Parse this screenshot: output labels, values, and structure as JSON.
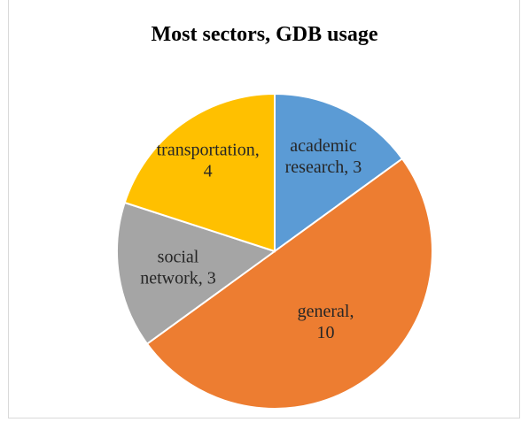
{
  "chart_data": {
    "type": "pie",
    "title": "Most sectors, GDB usage",
    "categories": [
      "academic research",
      "general",
      "social network",
      "transportation"
    ],
    "values": [
      3,
      10,
      3,
      4
    ],
    "colors": [
      "#5b9bd5",
      "#ed7d31",
      "#a5a5a5",
      "#ffc000"
    ],
    "data_labels": [
      [
        "academic",
        "research, 3"
      ],
      [
        "general,",
        "10"
      ],
      [
        "social",
        "network, 3"
      ],
      [
        "transportation,",
        "4"
      ]
    ],
    "start_angle_deg": 0,
    "direction": "clockwise",
    "legend": "none"
  }
}
